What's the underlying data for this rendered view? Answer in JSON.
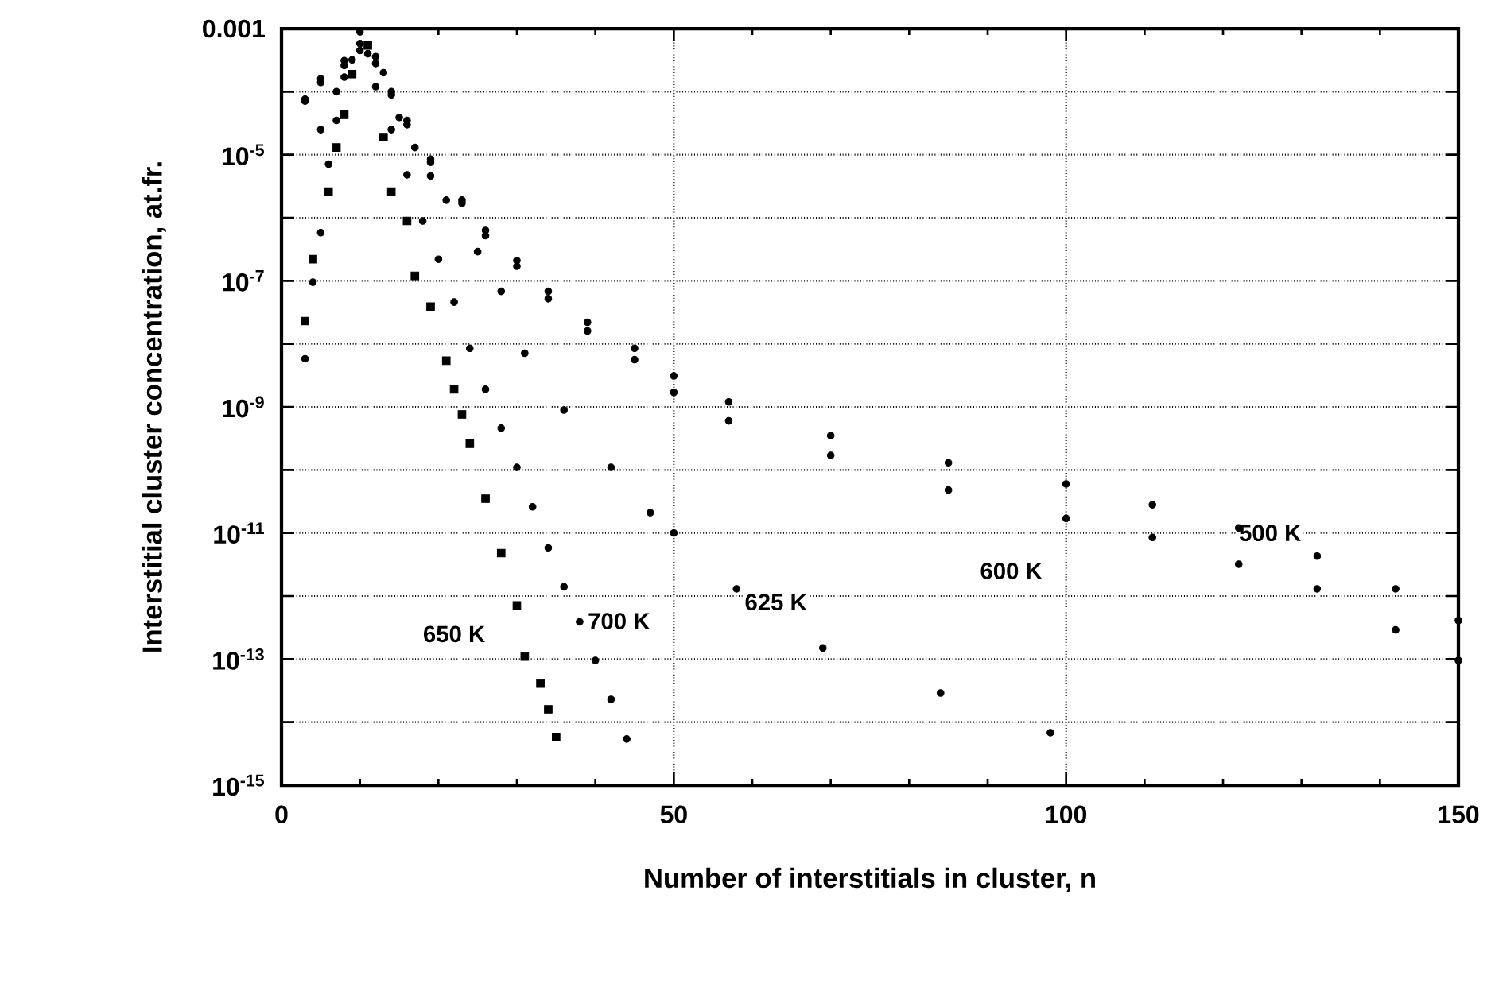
{
  "chart_data": {
    "type": "scatter",
    "xlabel": "Number of interstitials in cluster, n",
    "ylabel": "Interstitial cluster concentration, at.fr.",
    "log": "y",
    "grid": true,
    "xlim": [
      0,
      150
    ],
    "xticks": [
      0,
      50,
      100,
      150
    ],
    "ylim": [
      1e-15,
      0.001
    ],
    "yticks": [
      {
        "value": 0.001,
        "label": "0.001"
      },
      {
        "value": 0.0001,
        "label": null
      },
      {
        "value": 1e-05,
        "label": "10$^{-5}$"
      },
      {
        "value": 1e-06,
        "label": null
      },
      {
        "value": 1e-07,
        "label": "10$^{-7}$"
      },
      {
        "value": 1e-08,
        "label": null
      },
      {
        "value": 1e-09,
        "label": "10$^{-9}$"
      },
      {
        "value": 1e-10,
        "label": null
      },
      {
        "value": 1e-11,
        "label": "10$^{-11}$"
      },
      {
        "value": 1e-12,
        "label": null
      },
      {
        "value": 1e-13,
        "label": "10$^{-13}$"
      },
      {
        "value": 1e-14,
        "label": null
      },
      {
        "value": 1e-15,
        "label": "10$^{-15}$"
      }
    ],
    "series": [
      {
        "color": "#000000",
        "marker": "circle",
        "x": [
          3,
          5,
          8,
          10,
          12,
          14,
          16,
          19,
          23,
          26,
          30,
          34,
          39,
          45,
          50,
          57,
          70,
          85,
          100,
          111,
          122,
          132,
          142,
          150
        ],
        "values": [
          7.6e-05,
          0.00016,
          0.00031,
          0.00058,
          0.00036,
          0.0001,
          3.5e-05,
          8.5e-06,
          1.9e-06,
          6.3e-07,
          2.1e-07,
          6.8e-08,
          2.2e-08,
          8.5e-09,
          3.1e-09,
          1.2e-09,
          3.5e-10,
          1.3e-10,
          6e-11,
          2.8e-11,
          1.2e-11,
          4.3e-12,
          1.3e-12,
          4.1e-13
        ]
      },
      {
        "color": "#000000",
        "marker": "circle",
        "x": [
          3,
          5,
          8,
          10,
          12,
          14,
          16,
          19,
          23,
          26,
          30,
          34,
          39,
          45,
          50,
          57,
          70,
          85,
          100,
          111,
          122,
          132,
          142,
          150
        ],
        "values": [
          7.1e-05,
          0.00014,
          0.00026,
          0.00045,
          0.00028,
          8.9e-05,
          3e-05,
          7.6e-06,
          1.7e-06,
          5.2e-07,
          1.7e-07,
          5.2e-08,
          1.6e-08,
          5.6e-09,
          1.7e-09,
          6e-10,
          1.7e-10,
          4.8e-11,
          1.7e-11,
          8.5e-12,
          3.2e-12,
          1.3e-12,
          2.9e-13,
          9.5e-14
        ]
      },
      {
        "color": "#000000",
        "marker": "circle",
        "x": [
          5,
          7,
          9,
          11,
          13,
          15,
          17,
          19,
          21,
          25,
          28,
          31,
          36,
          42,
          47,
          50,
          58,
          69,
          84,
          98
        ],
        "values": [
          2.5e-05,
          0.0001,
          0.00032,
          0.0004,
          0.0002,
          3.9e-05,
          1.3e-05,
          4.6e-06,
          1.9e-06,
          2.9e-07,
          6.8e-08,
          7.1e-09,
          8.9e-10,
          1.1e-10,
          2.1e-11,
          1e-11,
          1.3e-12,
          1.5e-13,
          2.9e-14,
          6.8e-15
        ]
      },
      {
        "color": "#000000",
        "marker": "square",
        "x": [
          3,
          4,
          6,
          7,
          8,
          9,
          11,
          13,
          14,
          16,
          17,
          19,
          21,
          22,
          23,
          24,
          26,
          28,
          30,
          31,
          33,
          34,
          35
        ],
        "values": [
          2.3e-08,
          2.2e-07,
          2.6e-06,
          1.3e-05,
          4.3e-05,
          0.00019,
          0.00054,
          1.9e-05,
          2.6e-06,
          8.9e-07,
          1.2e-07,
          3.9e-08,
          5.4e-09,
          1.9e-09,
          7.6e-10,
          2.6e-10,
          3.5e-11,
          4.8e-12,
          7.1e-13,
          1.1e-13,
          4.1e-14,
          1.6e-14,
          5.8e-15
        ]
      },
      {
        "color": "#000000",
        "marker": "circle",
        "x": [
          3,
          4,
          5,
          6,
          7,
          8,
          10,
          12,
          14,
          16,
          18,
          20,
          22,
          24,
          26,
          28,
          30,
          32,
          34,
          36,
          38,
          40,
          42,
          44
        ],
        "values": [
          5.8e-09,
          9.5e-08,
          5.8e-07,
          7.1e-06,
          3.5e-05,
          0.00017,
          0.00089,
          0.00012,
          2.5e-05,
          4.8e-06,
          8.9e-07,
          2.2e-07,
          4.6e-08,
          8.5e-09,
          1.9e-09,
          4.6e-10,
          1.1e-10,
          2.6e-11,
          5.8e-12,
          1.4e-12,
          3.9e-13,
          9.5e-14,
          2.3e-14,
          5.4e-15
        ]
      }
    ],
    "annotations": [
      {
        "text": "500 K",
        "x": 126,
        "y": 1e-11
      },
      {
        "text": "600 K",
        "x": 93,
        "y": 2.5e-12
      },
      {
        "text": "625 K",
        "x": 63,
        "y": 8e-13
      },
      {
        "text": "650 K",
        "x": 22,
        "y": 2.5e-13
      },
      {
        "text": "700 K",
        "x": 43,
        "y": 4e-13
      }
    ]
  }
}
